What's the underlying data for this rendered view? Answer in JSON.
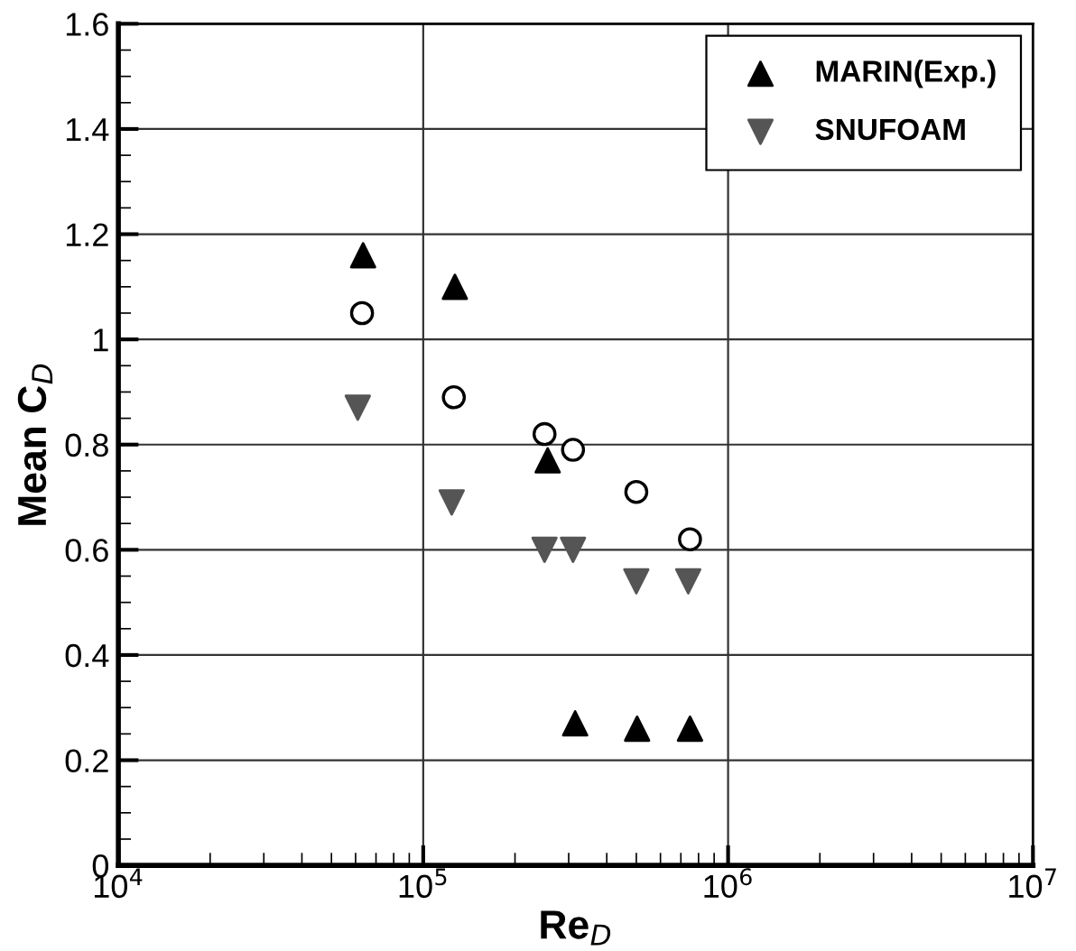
{
  "chart_data": {
    "type": "scatter",
    "xlabel": "Re$_{D}$",
    "ylabel": "Mean C$_{D}$",
    "log": "x",
    "grid": true,
    "legend": "top right",
    "xlim": [
      10000,
      10000000
    ],
    "xticks": [
      {
        "value": 10000,
        "label": "10$^{4}$"
      },
      {
        "value": 100000,
        "label": "10$^{5}$"
      },
      {
        "value": 1000000,
        "label": "10$^{6}$"
      },
      {
        "value": 10000000,
        "label": "10$^{7}$"
      }
    ],
    "ylim": [
      0,
      1.6
    ],
    "yticks": [
      0,
      0.2,
      0.4,
      0.6,
      0.8,
      1,
      1.2,
      1.4,
      1.6
    ],
    "series": [
      {
        "name": "MARIN(Exp.)",
        "color": "#000000",
        "marker": "triangle",
        "x": [
          63500,
          127000,
          256000,
          315000,
          503000,
          750000
        ],
        "values": [
          1.16,
          1.1,
          0.77,
          0.27,
          0.26,
          0.26
        ]
      },
      {
        "name": "SNUFOAM",
        "color": "#555555",
        "marker": "triangle_down",
        "x": [
          61000,
          124000,
          250000,
          310000,
          500000,
          740000
        ],
        "values": [
          0.87,
          0.69,
          0.6,
          0.6,
          0.54,
          0.54
        ]
      },
      {
        "color": "#000000",
        "marker": "open_circle",
        "x": [
          63000,
          126000,
          250000,
          310000,
          500000,
          750000
        ],
        "values": [
          1.05,
          0.89,
          0.82,
          0.79,
          0.71,
          0.62
        ]
      }
    ]
  }
}
